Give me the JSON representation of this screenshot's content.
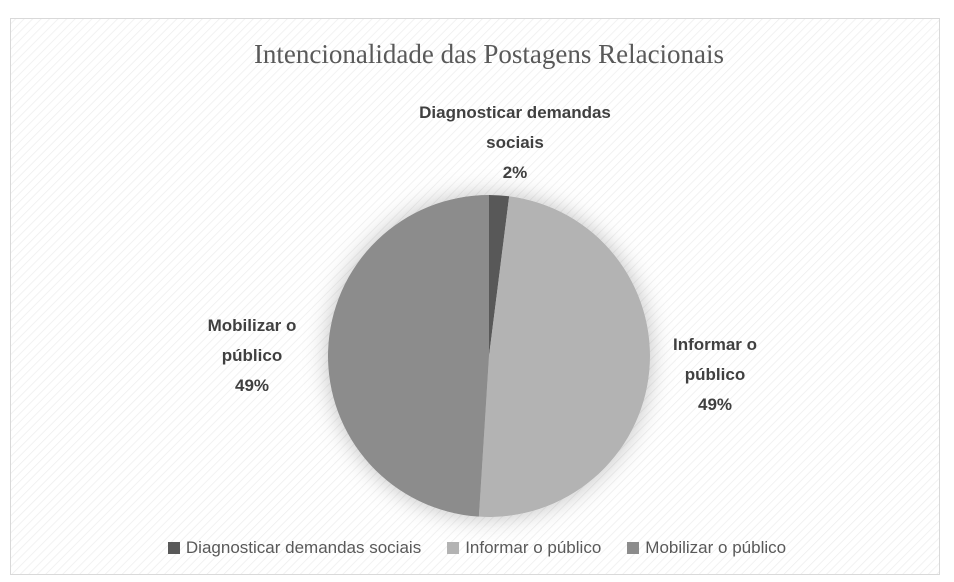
{
  "chart_data": {
    "type": "pie",
    "title": "Intencionalidade das Postagens Relacionais",
    "categories": [
      "Diagnosticar demandas sociais",
      "Informar o público",
      "Mobilizar o público"
    ],
    "values": [
      2,
      49,
      49
    ],
    "value_labels": [
      "2%",
      "49%",
      "49%"
    ],
    "colors": [
      "#595959",
      "#b3b3b3",
      "#8c8c8c"
    ],
    "legend": "bottom"
  }
}
